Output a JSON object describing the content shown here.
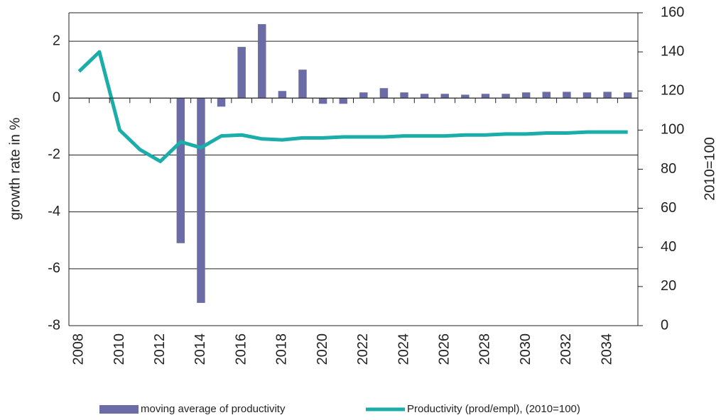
{
  "chart_data": {
    "type": "bar_line",
    "x": [
      2008,
      2009,
      2010,
      2011,
      2012,
      2013,
      2014,
      2015,
      2016,
      2017,
      2018,
      2019,
      2020,
      2021,
      2022,
      2023,
      2024,
      2025,
      2026,
      2027,
      2028,
      2029,
      2030,
      2031,
      2032,
      2033,
      2034,
      2035
    ],
    "xlim": [
      2007.5,
      2035.5
    ],
    "xticks": [
      2008,
      2010,
      2012,
      2014,
      2016,
      2018,
      2020,
      2022,
      2024,
      2026,
      2028,
      2030,
      2032,
      2034
    ],
    "ylim": [
      -8,
      3
    ],
    "yticks": [
      -8,
      -6,
      -4,
      -2,
      0,
      2
    ],
    "y2lim": [
      0,
      160
    ],
    "y2ticks": [
      0,
      20,
      40,
      60,
      80,
      100,
      120,
      140,
      160
    ],
    "ylabel": "growth rate in %",
    "y2label": "2010=100",
    "grid": true,
    "legend": "bottom",
    "series": [
      {
        "name": "moving average of productivity",
        "type": "bar",
        "color": "#6b6ba5",
        "values": [
          null,
          null,
          null,
          null,
          null,
          -5.1,
          -7.2,
          -0.3,
          1.8,
          2.6,
          0.25,
          1.0,
          -0.2,
          -0.2,
          0.2,
          0.35,
          0.2,
          0.15,
          0.15,
          0.12,
          0.15,
          0.15,
          0.2,
          0.22,
          0.22,
          0.2,
          0.22,
          0.2
        ]
      },
      {
        "name": "Productivity (prod/empl), (2010=100)",
        "type": "line",
        "axis": "y2",
        "color": "#1aada9",
        "values": [
          130,
          140,
          100,
          90,
          84,
          94,
          91,
          97,
          97.5,
          95.5,
          95,
          96,
          96,
          96.5,
          96.5,
          96.5,
          97,
          97,
          97,
          97.5,
          97.5,
          98,
          98,
          98.5,
          98.5,
          99,
          99,
          99
        ]
      }
    ]
  }
}
